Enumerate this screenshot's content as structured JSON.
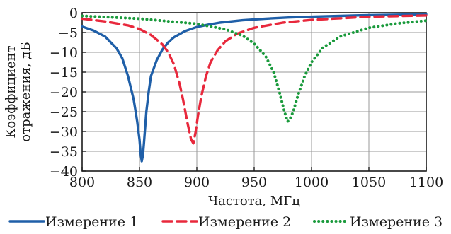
{
  "chart_data": {
    "type": "line",
    "xlabel": "Частота, МГц",
    "ylabel_lines": [
      "Коэффициент",
      "отражения, дБ"
    ],
    "xlim": [
      800,
      1100
    ],
    "ylim": [
      -40,
      0
    ],
    "xticks": [
      800,
      850,
      900,
      950,
      1000,
      1050,
      1100
    ],
    "yticks": [
      0,
      -5,
      -10,
      -15,
      -20,
      -25,
      -30,
      -35,
      -40
    ],
    "xtick_labels": [
      "800",
      "850",
      "900",
      "950",
      "1000",
      "1050",
      "1100"
    ],
    "ytick_labels": [
      "0",
      "−5",
      "−10",
      "−15",
      "−20",
      "−25",
      "−30",
      "−35",
      "−40"
    ],
    "grid": true,
    "legend_position": "bottom",
    "series": [
      {
        "name": "Измерение 1",
        "color": "#1f5fa8",
        "style": "solid",
        "x": [
          800,
          810,
          820,
          830,
          835,
          840,
          845,
          848,
          850,
          851,
          852,
          853,
          854,
          856,
          858,
          860,
          865,
          870,
          875,
          880,
          890,
          900,
          910,
          920,
          940,
          960,
          980,
          1000,
          1025,
          1050,
          1075,
          1100
        ],
        "y": [
          -3.5,
          -4.5,
          -6.0,
          -9.0,
          -11.5,
          -16.0,
          -22.0,
          -27.5,
          -32.0,
          -35.5,
          -37.5,
          -36.0,
          -32.5,
          -25.0,
          -20.0,
          -16.0,
          -12.0,
          -9.3,
          -7.5,
          -6.2,
          -4.6,
          -3.6,
          -3.0,
          -2.5,
          -1.9,
          -1.5,
          -1.2,
          -1.0,
          -0.8,
          -0.6,
          -0.5,
          -0.4
        ]
      },
      {
        "name": "Измерение 2",
        "color": "#e8283c",
        "style": "dashed",
        "x": [
          800,
          820,
          840,
          850,
          860,
          870,
          875,
          880,
          885,
          888,
          892,
          895,
          897,
          899,
          901,
          904,
          908,
          912,
          918,
          925,
          935,
          950,
          975,
          1000,
          1050,
          1100
        ],
        "y": [
          -1.5,
          -2.2,
          -3.2,
          -4.1,
          -5.6,
          -8.0,
          -10.0,
          -13.0,
          -18.0,
          -22.0,
          -28.0,
          -32.0,
          -33.0,
          -30.0,
          -26.0,
          -21.0,
          -16.0,
          -12.5,
          -9.5,
          -7.2,
          -5.3,
          -3.8,
          -2.5,
          -1.8,
          -1.0,
          -0.7
        ]
      },
      {
        "name": "Измерение 3",
        "color": "#1a9a3c",
        "style": "dotted",
        "x": [
          800,
          850,
          900,
          925,
          940,
          950,
          960,
          967,
          972,
          976,
          979,
          981,
          984,
          988,
          994,
          1000,
          1010,
          1025,
          1050,
          1075,
          1100
        ],
        "y": [
          -0.8,
          -1.5,
          -2.8,
          -4.2,
          -5.8,
          -7.8,
          -11.0,
          -15.0,
          -20.0,
          -24.5,
          -27.5,
          -27.0,
          -25.0,
          -21.0,
          -16.0,
          -12.5,
          -8.8,
          -6.0,
          -3.8,
          -2.7,
          -2.0
        ]
      }
    ]
  }
}
